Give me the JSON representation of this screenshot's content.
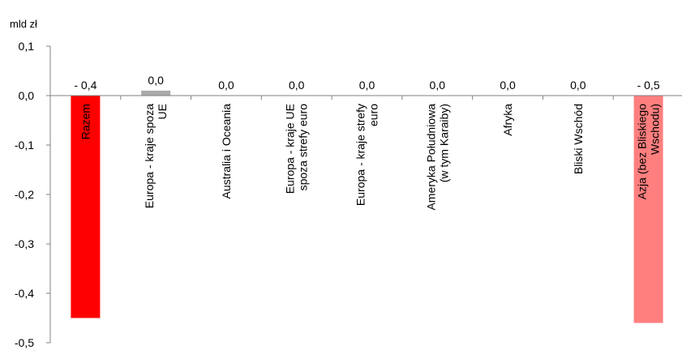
{
  "chart_data": {
    "type": "bar",
    "ylabel": "mld zł",
    "ylim": [
      -0.5,
      0.1
    ],
    "yticks": [
      0.1,
      0.0,
      -0.1,
      -0.2,
      -0.3,
      -0.4,
      -0.5
    ],
    "ytick_labels": [
      "0,1",
      "0,0",
      "-0,1",
      "-0,2",
      "-0,3",
      "-0,4",
      "-0,5"
    ],
    "categories": [
      [
        "Razem"
      ],
      [
        "Europa - kraje spoza",
        "UE"
      ],
      [
        "Australia i Oceania"
      ],
      [
        "Europa - kraje UE",
        "spoza strefy euro"
      ],
      [
        "Europa - kraje strefy",
        "euro"
      ],
      [
        "Ameryka Południowa",
        "(w tym Karaiby)"
      ],
      [
        "Afryka"
      ],
      [
        "Bliski Wschód"
      ],
      [
        "Azja (bez Bliskiego",
        "Wschodu)"
      ]
    ],
    "values": [
      -0.45,
      0.01,
      0.0,
      0.0,
      0.0,
      0.0,
      0.0,
      0.0,
      -0.46
    ],
    "data_labels": [
      "- 0,4",
      "0,0",
      "0,0",
      "0,0",
      "0,0",
      "0,0",
      "0,0",
      "0,0",
      "- 0,5"
    ],
    "colors": [
      "#ff0000",
      "#aaaaaa",
      "#aaaaaa",
      "#aaaaaa",
      "#aaaaaa",
      "#aaaaaa",
      "#aaaaaa",
      "#aaaaaa",
      "#ff7f7f"
    ],
    "grid": false,
    "legend": "none"
  }
}
